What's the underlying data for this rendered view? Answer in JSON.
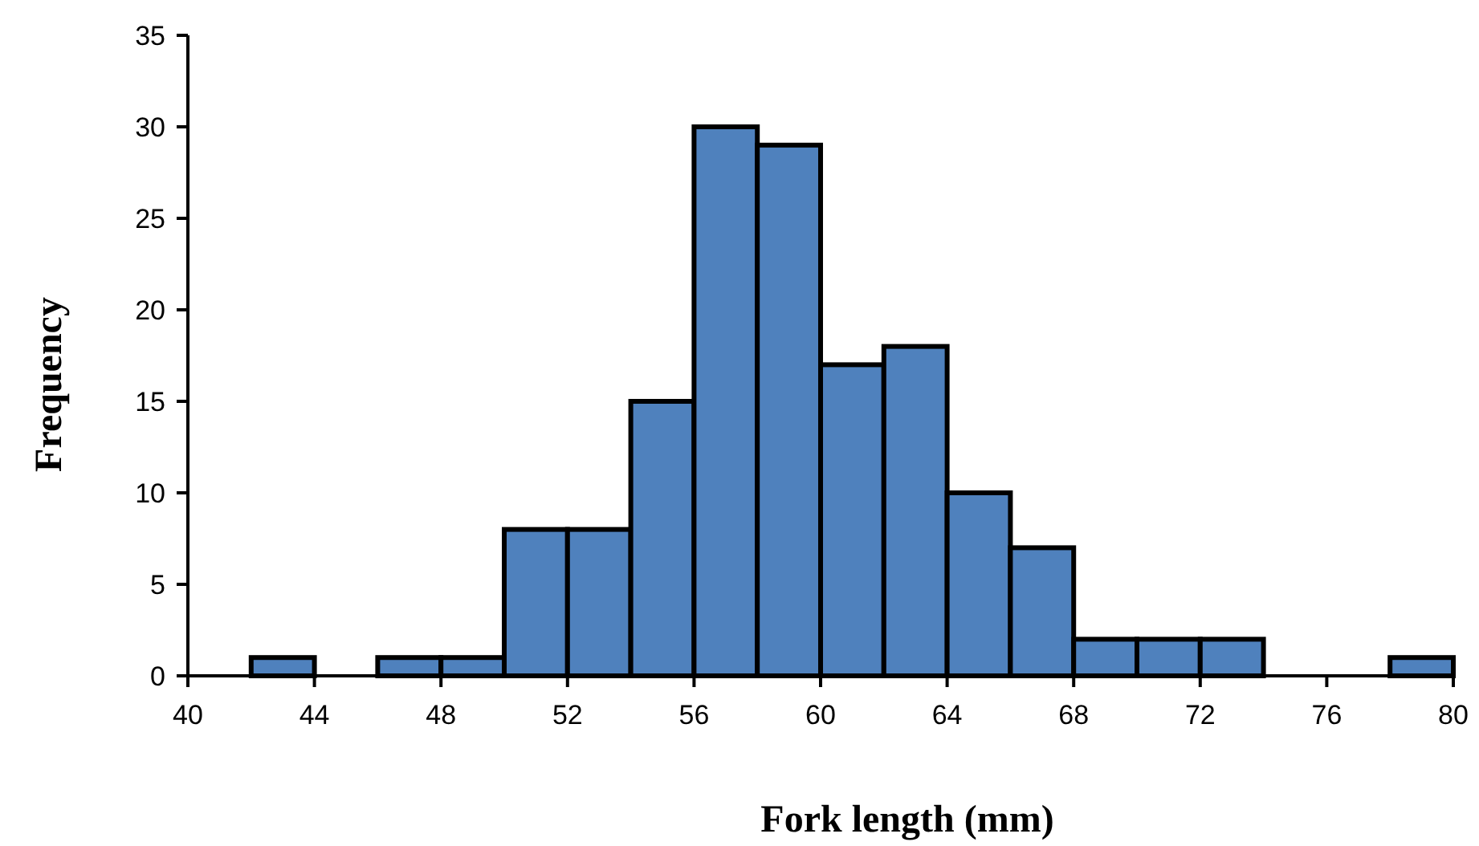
{
  "chart_data": {
    "type": "histogram",
    "xlabel": "Fork length (mm)",
    "ylabel": "Frequency",
    "bins": [
      40,
      42,
      44,
      46,
      48,
      50,
      52,
      54,
      56,
      58,
      60,
      62,
      64,
      66,
      68,
      70,
      72,
      74,
      76,
      78,
      80
    ],
    "values": [
      0,
      1,
      0,
      1,
      1,
      8,
      8,
      15,
      30,
      29,
      17,
      18,
      10,
      7,
      2,
      2,
      2,
      0,
      0,
      1
    ],
    "color": "#4f81bd",
    "xlim": [
      40,
      80
    ],
    "xticks": [
      40,
      44,
      48,
      52,
      56,
      60,
      64,
      68,
      72,
      76,
      80
    ],
    "ylim": [
      0,
      35
    ],
    "yticks": [
      0,
      5,
      10,
      15,
      20,
      25,
      30,
      35
    ],
    "grid": false
  }
}
